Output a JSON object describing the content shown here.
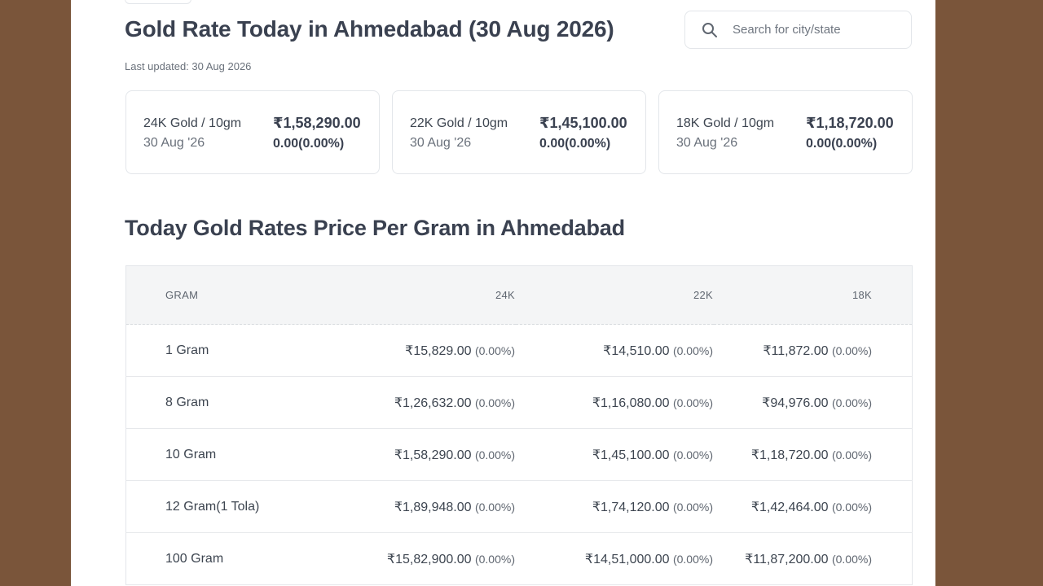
{
  "header": {
    "title": "Gold Rate Today in Ahmedabad (30 Aug 2026)",
    "last_updated": "Last updated: 30 Aug 2026"
  },
  "search": {
    "placeholder": "Search for city/state",
    "icon": "search-icon"
  },
  "cards": [
    {
      "label": "24K Gold / 10gm",
      "date": "30 Aug '26",
      "price": "₹1,58,290.00",
      "change": "0.00(0.00%)"
    },
    {
      "label": "22K Gold / 10gm",
      "date": "30 Aug '26",
      "price": "₹1,45,100.00",
      "change": "0.00(0.00%)"
    },
    {
      "label": "18K Gold / 10gm",
      "date": "30 Aug '26",
      "price": "₹1,18,720.00",
      "change": "0.00(0.00%)"
    }
  ],
  "table": {
    "title": "Today Gold Rates Price Per Gram in Ahmedabad",
    "columns": [
      "GRAM",
      "24K",
      "22K",
      "18K"
    ],
    "rows": [
      {
        "gram": "1 Gram",
        "k24": "₹15,829.00",
        "k24_pct": "(0.00%)",
        "k22": "₹14,510.00",
        "k22_pct": "(0.00%)",
        "k18": "₹11,872.00",
        "k18_pct": "(0.00%)"
      },
      {
        "gram": "8 Gram",
        "k24": "₹1,26,632.00",
        "k24_pct": "(0.00%)",
        "k22": "₹1,16,080.00",
        "k22_pct": "(0.00%)",
        "k18": "₹94,976.00",
        "k18_pct": "(0.00%)"
      },
      {
        "gram": "10 Gram",
        "k24": "₹1,58,290.00",
        "k24_pct": "(0.00%)",
        "k22": "₹1,45,100.00",
        "k22_pct": "(0.00%)",
        "k18": "₹1,18,720.00",
        "k18_pct": "(0.00%)"
      },
      {
        "gram": "12 Gram(1 Tola)",
        "k24": "₹1,89,948.00",
        "k24_pct": "(0.00%)",
        "k22": "₹1,74,120.00",
        "k22_pct": "(0.00%)",
        "k18": "₹1,42,464.00",
        "k18_pct": "(0.00%)"
      },
      {
        "gram": "100 Gram",
        "k24": "₹15,82,900.00",
        "k24_pct": "(0.00%)",
        "k22": "₹14,51,000.00",
        "k22_pct": "(0.00%)",
        "k18": "₹11,87,200.00",
        "k18_pct": "(0.00%)"
      }
    ]
  },
  "colors": {
    "background": "#7a553a",
    "panel": "#ffffff",
    "text": "#3a4150",
    "muted": "#6a717b",
    "border": "#e3e6ea",
    "table_header_bg": "#f4f5f6"
  }
}
